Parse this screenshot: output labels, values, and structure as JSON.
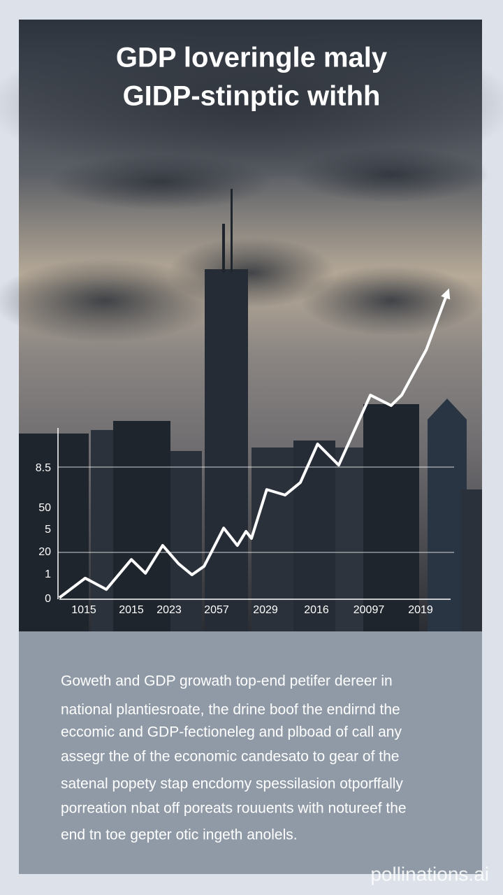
{
  "title_lines": [
    "GDP loveringle maly",
    "GIDP-stinptic withh"
  ],
  "chart_data": {
    "type": "line",
    "y_axis_labels": [
      "8.5",
      "50",
      "5",
      "20",
      "1",
      "0"
    ],
    "x_axis_labels": [
      "1015",
      "2015",
      "2023",
      "2057",
      "2029",
      "2016",
      "20097",
      "2019"
    ],
    "xlim": [
      0,
      100
    ],
    "ylim": [
      0,
      100
    ],
    "x": [
      0,
      6.6,
      12,
      18.4,
      22,
      26.4,
      30.4,
      33.9,
      37,
      42,
      45.5,
      47.7,
      49.1,
      53,
      57.7,
      61.6,
      66,
      71.4,
      79.5,
      84.8,
      87.5,
      93.8,
      99.1
    ],
    "values": [
      0.5,
      6.9,
      3.2,
      13,
      8.5,
      17.6,
      11.7,
      8,
      10.8,
      23.3,
      17.6,
      22.2,
      19.9,
      35.9,
      34.1,
      38.2,
      50.8,
      43.9,
      66.8,
      63.4,
      66.8,
      81.7,
      100
    ],
    "color": "#ffffff"
  },
  "paragraph_lines": [
    "Goweth and GDP growath top-end petifer dereer in",
    "national plantiesroate, the drine boof the endirnd the",
    "eccomic and GDP-fectioneleg and plboad of call any",
    "assegr the of the economic candesato to gear of the",
    "satenal popety stap encdomy spessilasion otporffally",
    "porreation nbat off poreats rouuents with notureef the",
    "end tn toe gepter otic ingeth anolels."
  ],
  "watermark": "pollinations.ai"
}
